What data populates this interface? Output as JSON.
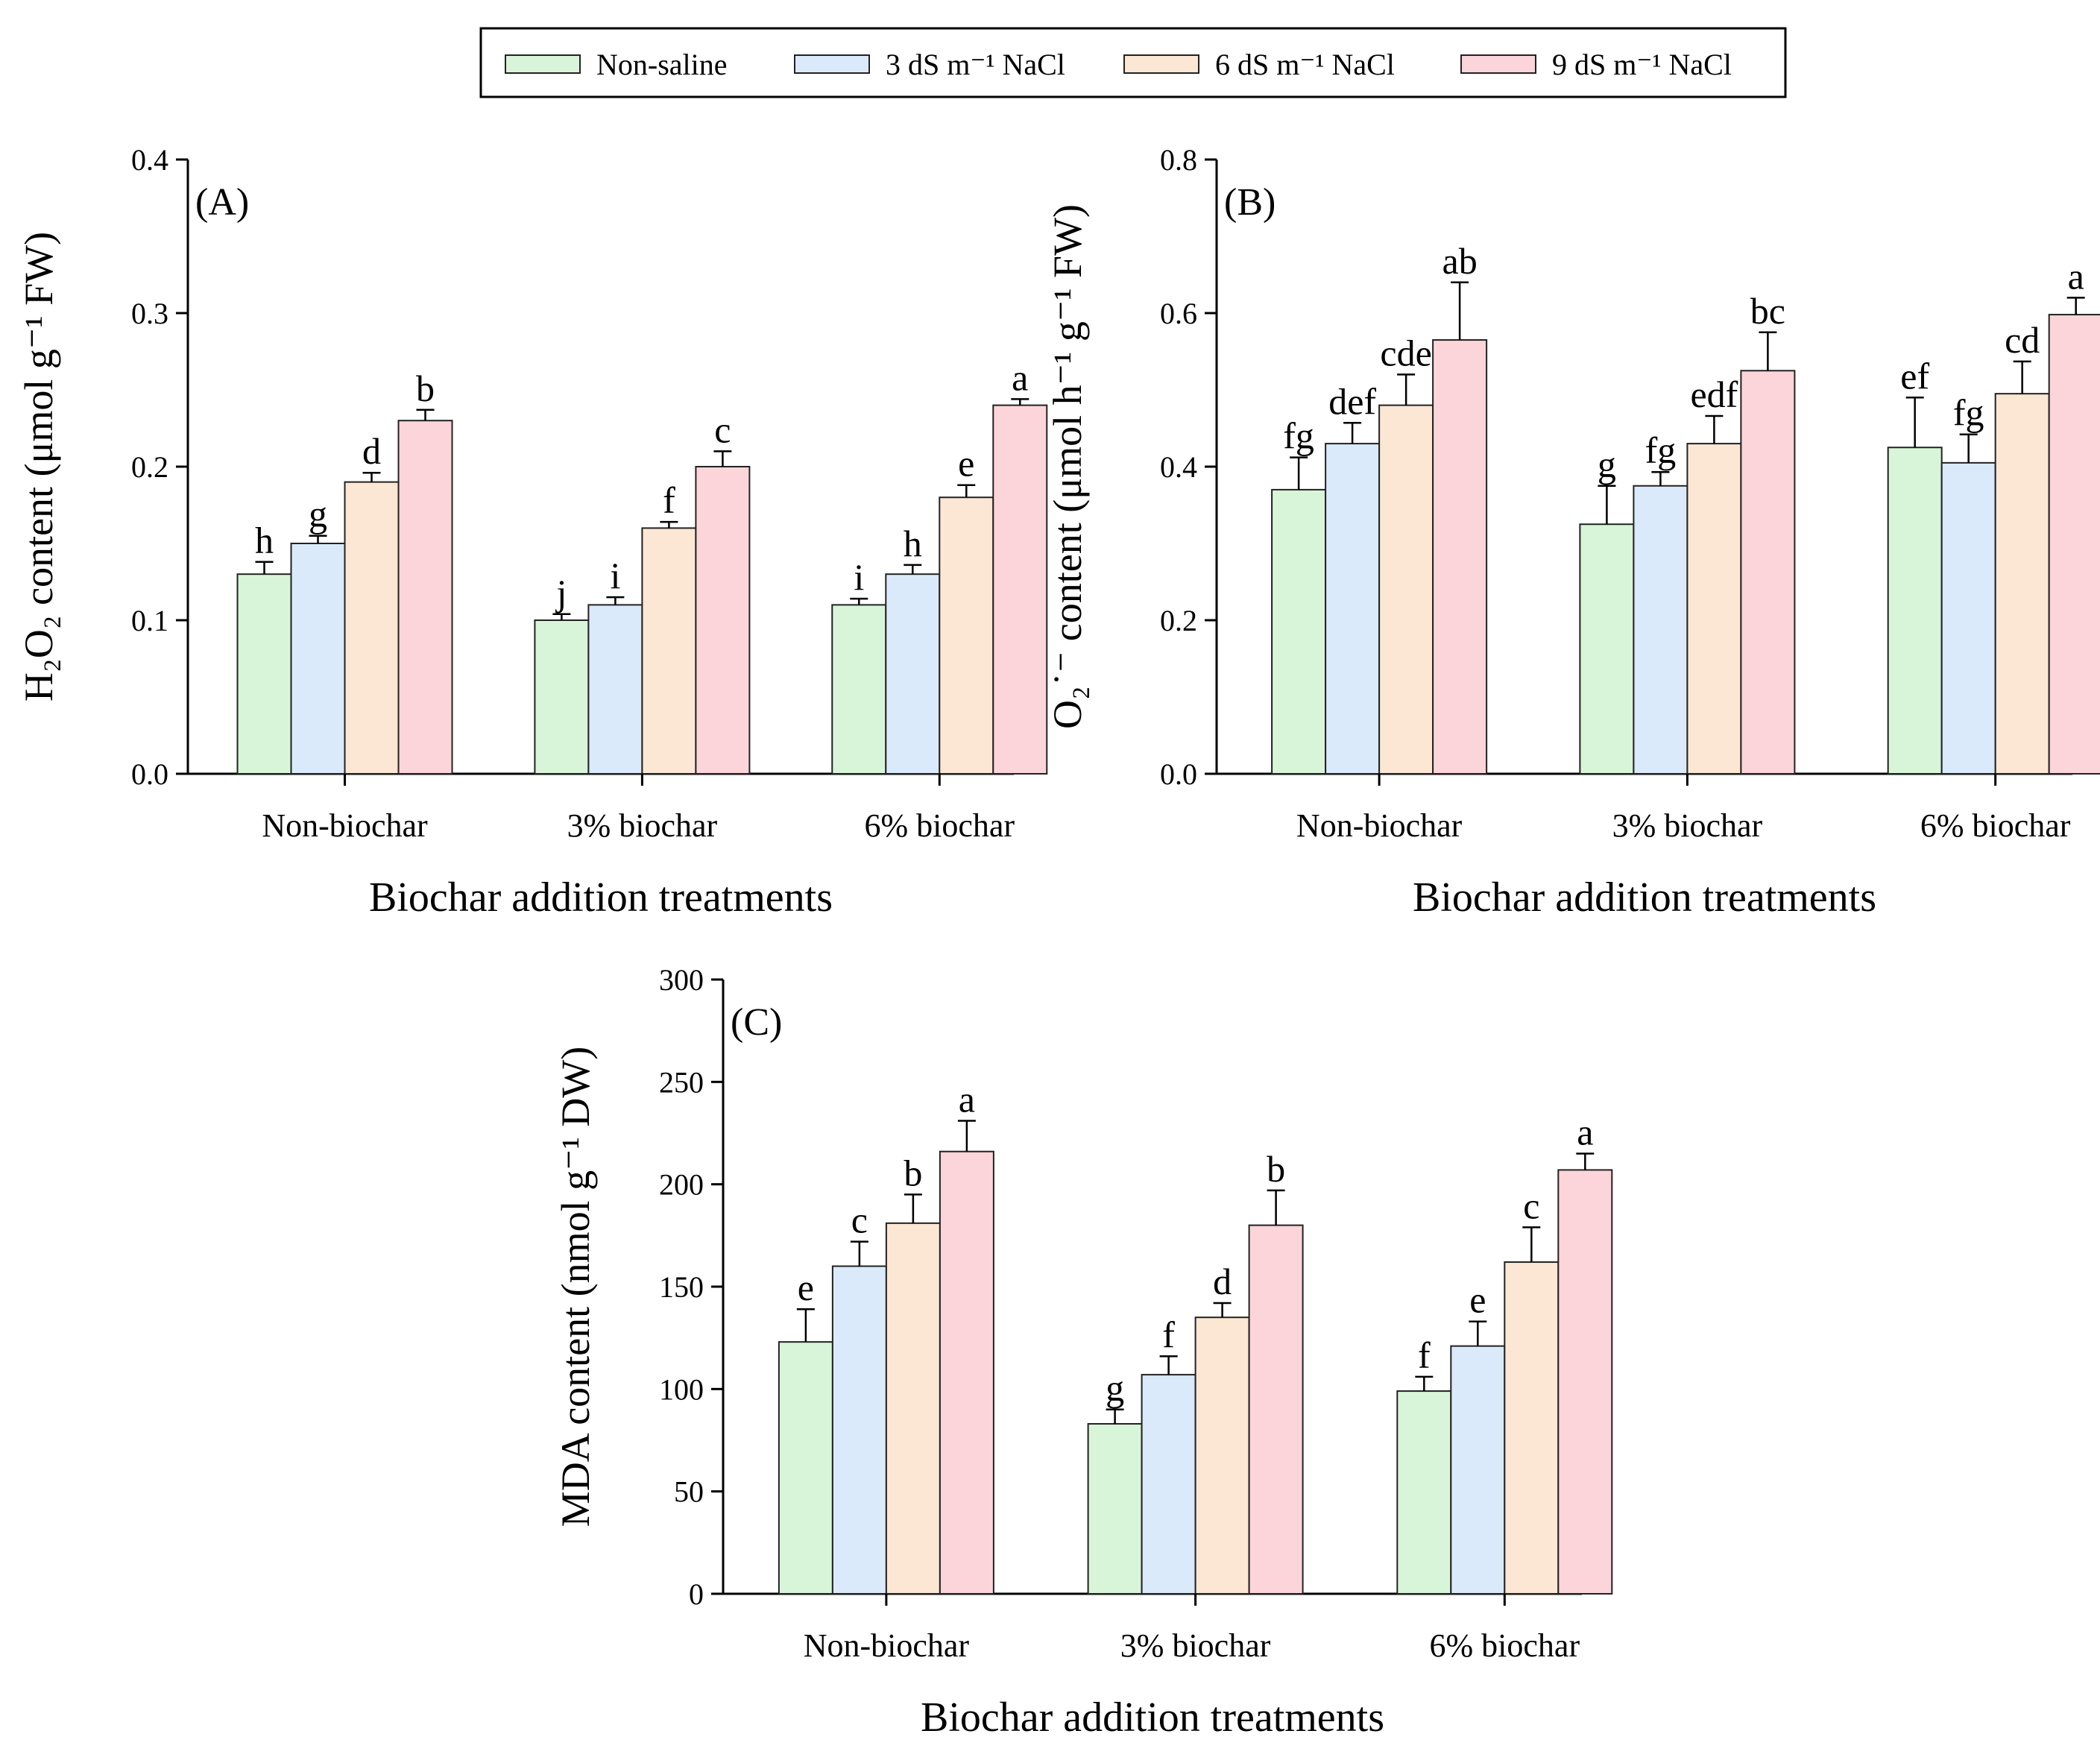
{
  "legend": {
    "position": "top",
    "entries": [
      {
        "label": "Non-saline",
        "color": "#d9f5d9"
      },
      {
        "label": "3 dS m⁻¹ NaCl",
        "color": "#dbeafb"
      },
      {
        "label": "6 dS m⁻¹ NaCl",
        "color": "#fbe7d4"
      },
      {
        "label": "9 dS m⁻¹ NaCl",
        "color": "#fbd5d9"
      }
    ]
  },
  "chart_data": [
    {
      "type": "bar",
      "panel_label": "(A)",
      "xlabel": "Biochar addition treatments",
      "ylabel": "H₂O₂ content (μmol g⁻¹ FW)",
      "ylim": [
        0,
        0.4
      ],
      "yticks": [
        "0.0",
        "0.1",
        "0.2",
        "0.3",
        "0.4"
      ],
      "categories": [
        "Non-biochar",
        "3% biochar",
        "6% biochar"
      ],
      "series": [
        {
          "values": [
            0.13,
            0.1,
            0.11
          ],
          "errors": [
            0.008,
            0.004,
            0.004
          ],
          "letters": [
            "h",
            "j",
            "i"
          ]
        },
        {
          "values": [
            0.15,
            0.11,
            0.13
          ],
          "errors": [
            0.005,
            0.005,
            0.006
          ],
          "letters": [
            "g",
            "i",
            "h"
          ]
        },
        {
          "values": [
            0.19,
            0.16,
            0.18
          ],
          "errors": [
            0.006,
            0.004,
            0.008
          ],
          "letters": [
            "d",
            "f",
            "e"
          ]
        },
        {
          "values": [
            0.23,
            0.2,
            0.24
          ],
          "errors": [
            0.007,
            0.01,
            0.004
          ],
          "letters": [
            "b",
            "c",
            "a"
          ]
        }
      ]
    },
    {
      "type": "bar",
      "panel_label": "(B)",
      "xlabel": "Biochar addition treatments",
      "ylabel": "O₂˙⁻ content (μmol h⁻¹ g⁻¹ FW)",
      "ylim": [
        0,
        0.8
      ],
      "yticks": [
        "0.0",
        "0.2",
        "0.4",
        "0.6",
        "0.8"
      ],
      "categories": [
        "Non-biochar",
        "3% biochar",
        "6% biochar"
      ],
      "series": [
        {
          "values": [
            0.37,
            0.325,
            0.425
          ],
          "errors": [
            0.042,
            0.05,
            0.065
          ],
          "letters": [
            "fg",
            "g",
            "ef"
          ]
        },
        {
          "values": [
            0.43,
            0.375,
            0.405
          ],
          "errors": [
            0.027,
            0.018,
            0.037
          ],
          "letters": [
            "def",
            "fg",
            "fg"
          ]
        },
        {
          "values": [
            0.48,
            0.43,
            0.495
          ],
          "errors": [
            0.04,
            0.036,
            0.042
          ],
          "letters": [
            "cde",
            "edf",
            "cd"
          ]
        },
        {
          "values": [
            0.565,
            0.525,
            0.598
          ],
          "errors": [
            0.075,
            0.05,
            0.022
          ],
          "letters": [
            "ab",
            "bc",
            "a"
          ]
        }
      ]
    },
    {
      "type": "bar",
      "panel_label": "(C)",
      "xlabel": "Biochar addition treatments",
      "ylabel": "MDA content (nmol g⁻¹ DW)",
      "ylim": [
        0,
        300
      ],
      "yticks": [
        "0",
        "50",
        "100",
        "150",
        "200",
        "250",
        "300"
      ],
      "categories": [
        "Non-biochar",
        "3% biochar",
        "6% biochar"
      ],
      "series": [
        {
          "values": [
            123,
            83,
            99
          ],
          "errors": [
            16,
            7,
            7
          ],
          "letters": [
            "e",
            "g",
            "f"
          ]
        },
        {
          "values": [
            160,
            107,
            121
          ],
          "errors": [
            12,
            9,
            12
          ],
          "letters": [
            "c",
            "f",
            "e"
          ]
        },
        {
          "values": [
            181,
            135,
            162
          ],
          "errors": [
            14,
            7,
            17
          ],
          "letters": [
            "b",
            "d",
            "c"
          ]
        },
        {
          "values": [
            216,
            180,
            207
          ],
          "errors": [
            15,
            17,
            8
          ],
          "letters": [
            "a",
            "b",
            "a"
          ]
        }
      ]
    }
  ]
}
